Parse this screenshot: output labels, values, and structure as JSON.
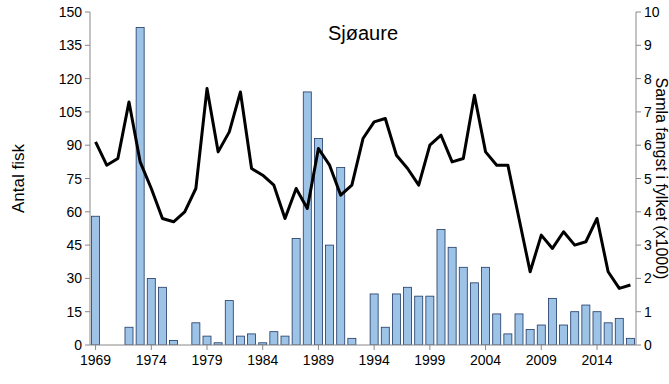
{
  "chart_data": {
    "type": "bar",
    "title": "Sjøaure",
    "y_label": "Antal fisk",
    "y2_label": "Samla fangst i fylket (x1000)",
    "categories": [
      "1969",
      null,
      null,
      null,
      null,
      "1974",
      null,
      null,
      null,
      null,
      "1979",
      null,
      null,
      null,
      null,
      "1984",
      null,
      null,
      null,
      null,
      "1989",
      null,
      null,
      null,
      null,
      "1994",
      null,
      null,
      null,
      null,
      "1999",
      null,
      null,
      null,
      null,
      "2004",
      null,
      null,
      null,
      null,
      "2009",
      null,
      null,
      null,
      null,
      "2014",
      null,
      null,
      null
    ],
    "series": [
      {
        "type": "bar",
        "color": "#9dc3e6",
        "values": [
          58,
          null,
          null,
          8,
          143,
          30,
          26,
          2,
          null,
          10,
          4,
          1,
          20,
          4,
          5,
          1,
          6,
          4,
          48,
          114,
          93,
          45,
          80,
          3,
          null,
          23,
          8,
          23,
          26,
          22,
          22,
          52,
          44,
          35,
          28,
          35,
          14,
          5,
          14,
          7,
          9,
          21,
          9,
          15,
          18,
          15,
          10,
          12,
          3
        ]
      },
      {
        "type": "line",
        "axis": "y2",
        "color": "#000000",
        "values": [
          6.1,
          5.4,
          5.6,
          7.3,
          5.5,
          4.7,
          3.8,
          3.7,
          4.0,
          4.7,
          7.7,
          5.8,
          6.4,
          7.6,
          5.3,
          5.1,
          4.8,
          3.8,
          4.7,
          4.1,
          5.9,
          5.4,
          4.5,
          4.8,
          6.2,
          6.7,
          6.8,
          5.7,
          5.3,
          4.8,
          6.0,
          6.3,
          5.5,
          5.6,
          7.5,
          5.8,
          5.4,
          5.4,
          3.8,
          2.2,
          3.3,
          2.9,
          3.4,
          3.0,
          3.1,
          3.8,
          2.2,
          1.7,
          1.8
        ]
      }
    ],
    "ylim": [
      0,
      150
    ],
    "yticks": [
      0,
      15,
      30,
      45,
      60,
      75,
      90,
      105,
      120,
      135,
      150
    ],
    "y2lim": [
      0,
      10
    ],
    "y2ticks": [
      0,
      1,
      2,
      3,
      4,
      5,
      6,
      7,
      8,
      9,
      10
    ],
    "grid": false
  }
}
